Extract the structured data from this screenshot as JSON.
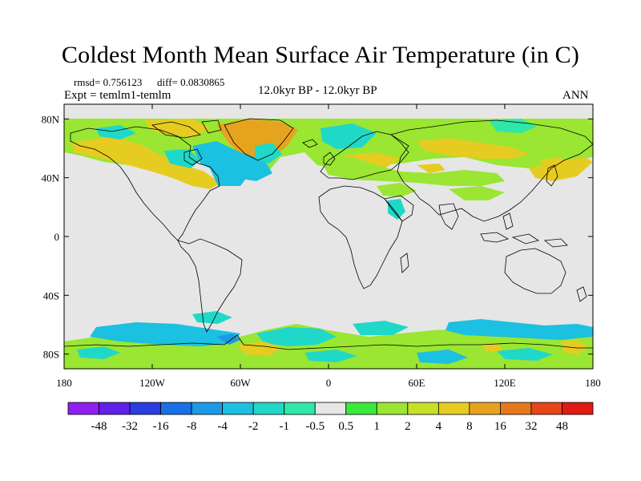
{
  "title": "Coldest Month Mean Surface Air Temperature (in C)",
  "stats": {
    "rmsd": "rmsd= 0.756123",
    "diff": "diff= 0.0830865"
  },
  "experiment": "Expt = temlm1-temlm",
  "period": "12.0kyr BP - 12.0kyr BP",
  "season": "ANN",
  "map": {
    "lon_range": [
      -180,
      180
    ],
    "lat_range": [
      -90,
      90
    ],
    "x_ticks": [
      {
        "lon": -180,
        "label": "180"
      },
      {
        "lon": -120,
        "label": "120W"
      },
      {
        "lon": -60,
        "label": "60W"
      },
      {
        "lon": 0,
        "label": "0"
      },
      {
        "lon": 60,
        "label": "60E"
      },
      {
        "lon": 120,
        "label": "120E"
      },
      {
        "lon": 180,
        "label": "180"
      }
    ],
    "y_ticks": [
      {
        "lat": 80,
        "label": "80N"
      },
      {
        "lat": 40,
        "label": "40N"
      },
      {
        "lat": 0,
        "label": "0"
      },
      {
        "lat": -40,
        "label": "40S"
      },
      {
        "lat": -80,
        "label": "80S"
      }
    ],
    "background_color": "#e6e6e6"
  },
  "colorbar": {
    "colors": [
      "#8f1ff0",
      "#6020e8",
      "#2a3de0",
      "#1a6fe6",
      "#1c9ae6",
      "#1cc0e0",
      "#20d8c8",
      "#2fe8a8",
      "#e6e6e6",
      "#3ce83c",
      "#9ae632",
      "#c6e028",
      "#e6cc20",
      "#e6a41e",
      "#e6781c",
      "#e6461a",
      "#e01a14"
    ],
    "labels": [
      "-48",
      "-32",
      "-16",
      "-8",
      "-4",
      "-2",
      "-1",
      "-0.5",
      "0.5",
      "1",
      "2",
      "4",
      "8",
      "16",
      "32",
      "48"
    ]
  }
}
